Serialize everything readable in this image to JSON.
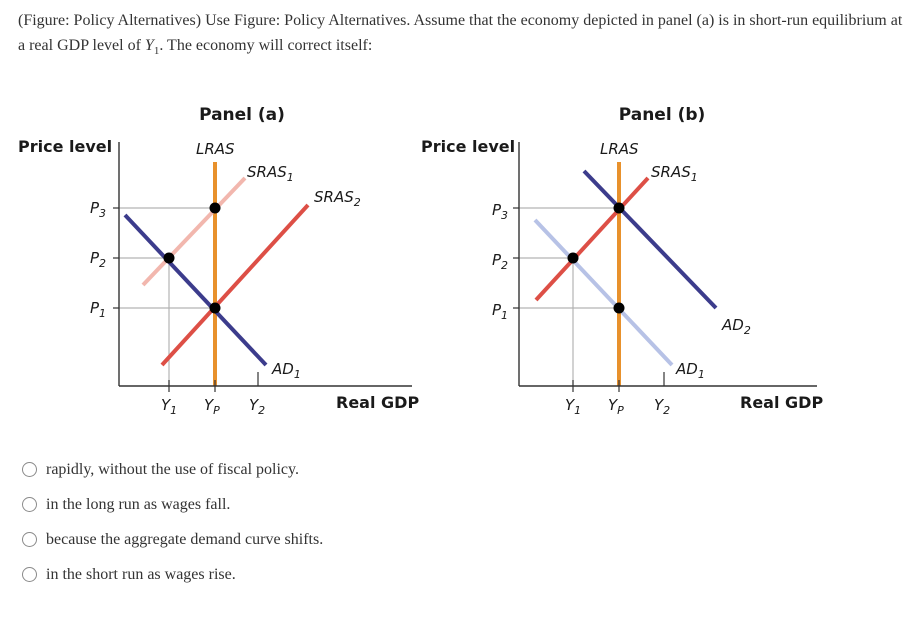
{
  "question": {
    "text_before": "(Figure: Policy Alternatives) Use Figure: Policy Alternatives. Assume that the economy depicted in panel (a) is in short-run equilibrium at a real GDP level of ",
    "var": "Y",
    "sub": "1",
    "text_after": ". The economy will correct itself:"
  },
  "figure": {
    "panel_a": {
      "title": "Panel (a)",
      "y_axis_label": "Price level",
      "x_axis_label": "Real GDP",
      "lras": "LRAS",
      "curves": {
        "sras1": {
          "base": "SRAS",
          "sub": "1"
        },
        "sras2": {
          "base": "SRAS",
          "sub": "2"
        },
        "ad1": {
          "base": "AD",
          "sub": "1"
        }
      },
      "y_ticks": [
        {
          "base": "P",
          "sub": "3"
        },
        {
          "base": "P",
          "sub": "2"
        },
        {
          "base": "P",
          "sub": "1"
        }
      ],
      "x_ticks": [
        {
          "base": "Y",
          "sub": "1"
        },
        {
          "base": "Y",
          "sub": "P"
        },
        {
          "base": "Y",
          "sub": "2"
        }
      ]
    },
    "panel_b": {
      "title": "Panel (b)",
      "y_axis_label": "Price level",
      "x_axis_label": "Real GDP",
      "lras": "LRAS",
      "curves": {
        "sras1": {
          "base": "SRAS",
          "sub": "1"
        },
        "ad1": {
          "base": "AD",
          "sub": "1"
        },
        "ad2": {
          "base": "AD",
          "sub": "2"
        }
      },
      "y_ticks": [
        {
          "base": "P",
          "sub": "3"
        },
        {
          "base": "P",
          "sub": "2"
        },
        {
          "base": "P",
          "sub": "1"
        }
      ],
      "x_ticks": [
        {
          "base": "Y",
          "sub": "1"
        },
        {
          "base": "Y",
          "sub": "P"
        },
        {
          "base": "Y",
          "sub": "2"
        }
      ]
    },
    "colors": {
      "lras": "#e8912c",
      "sras_main": "#dd4f46",
      "sras_faded": "#f2b7ae",
      "ad_main": "#3c3c8c",
      "ad_faded": "#b7c2e6",
      "guide": "#b3b3b3",
      "axis": "#333333",
      "dot": "#000000"
    }
  },
  "options": [
    {
      "label": "rapidly, without the use of fiscal policy."
    },
    {
      "label": "in the long run as wages fall."
    },
    {
      "label": "because the aggregate demand curve shifts."
    },
    {
      "label": "in the short run as wages rise."
    }
  ]
}
